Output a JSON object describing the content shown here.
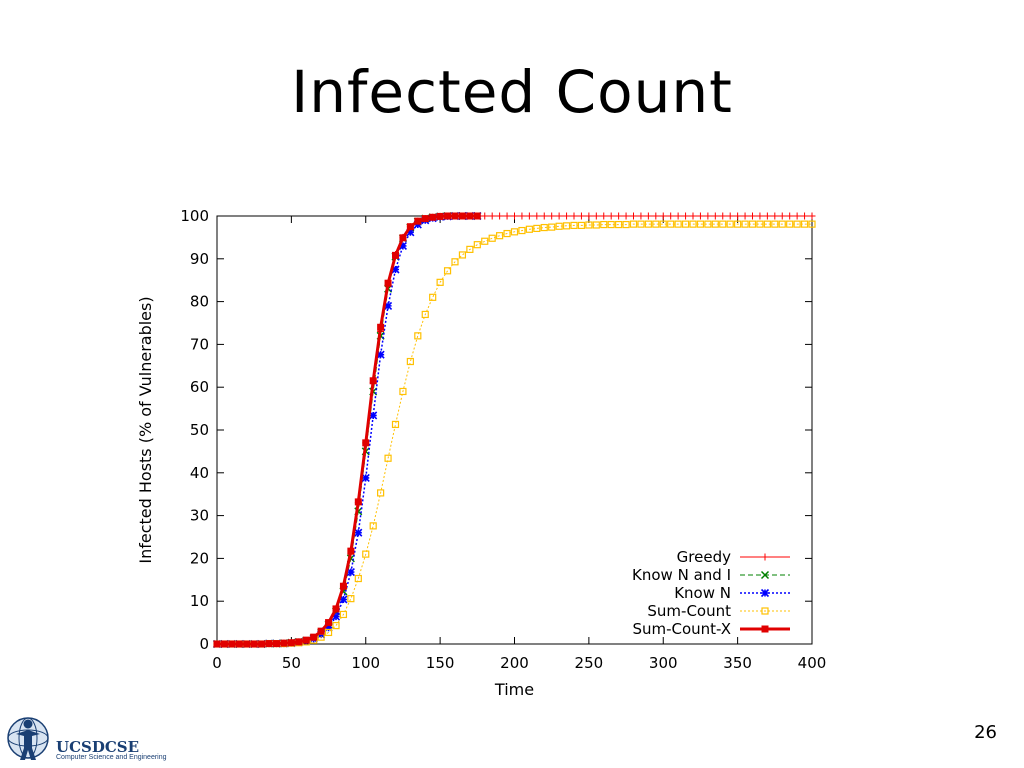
{
  "slide": {
    "title": "Infected Count",
    "page_number": "26"
  },
  "logo": {
    "main_text": "UCSDCSE",
    "sub_text": "Computer Science and Engineering"
  },
  "colors": {
    "greedy": "#ff0000",
    "know_n_and_i": "#008000",
    "know_n": "#0000ff",
    "sum_count": "#ffc000",
    "sum_count_x": "#e00000"
  },
  "chart_data": {
    "type": "line",
    "title": "",
    "xlabel": "Time",
    "ylabel": "Infected Hosts (% of Vulnerables)",
    "xlim": [
      0,
      400
    ],
    "ylim": [
      0,
      100
    ],
    "xticks": [
      0,
      50,
      100,
      150,
      200,
      250,
      300,
      350,
      400
    ],
    "yticks": [
      0,
      10,
      20,
      30,
      40,
      50,
      60,
      70,
      80,
      90,
      100
    ],
    "grid": false,
    "legend_position": "bottom-right",
    "series": [
      {
        "name": "Greedy",
        "color": "#ff0000",
        "marker": "plus",
        "dash": "solid",
        "width": 1,
        "x": [
          0,
          5,
          10,
          15,
          20,
          25,
          30,
          35,
          40,
          45,
          50,
          55,
          60,
          65,
          70,
          75,
          80,
          85,
          90,
          95,
          100,
          105,
          110,
          115,
          120,
          125,
          130,
          135,
          140,
          145,
          150,
          155,
          160,
          165,
          170,
          175,
          180,
          185,
          190,
          195,
          200,
          205,
          210,
          215,
          220,
          225,
          230,
          235,
          240,
          245,
          250,
          255,
          260,
          265,
          270,
          275,
          280,
          285,
          290,
          295,
          300,
          305,
          310,
          315,
          320,
          325,
          330,
          335,
          340,
          345,
          350,
          355,
          360,
          365,
          370,
          375,
          380,
          385,
          390,
          395,
          400
        ],
        "y": [
          0,
          0,
          0,
          0,
          0,
          0,
          0,
          0.1,
          0.1,
          0.2,
          0.3,
          0.5,
          0.8,
          1.5,
          2.8,
          4.8,
          8,
          13,
          21,
          33,
          47,
          61,
          73,
          84,
          91,
          95,
          97.5,
          98.8,
          99.4,
          99.7,
          99.9,
          100,
          100,
          100,
          100,
          100,
          100,
          100,
          100,
          100,
          100,
          100,
          100,
          100,
          100,
          100,
          100,
          100,
          100,
          100,
          100,
          100,
          100,
          100,
          100,
          100,
          100,
          100,
          100,
          100,
          100,
          100,
          100,
          100,
          100,
          100,
          100,
          100,
          100,
          100,
          100,
          100,
          100,
          100,
          100,
          100,
          100,
          100,
          100,
          100,
          100
        ]
      },
      {
        "name": "Know N and I",
        "color": "#008000",
        "marker": "x",
        "dash": "dashed",
        "width": 1,
        "x": [
          0,
          5,
          10,
          15,
          20,
          25,
          30,
          35,
          40,
          45,
          50,
          55,
          60,
          65,
          70,
          75,
          80,
          85,
          90,
          95,
          100,
          105,
          110,
          115,
          120,
          125,
          130,
          135,
          140,
          145,
          150,
          155,
          160,
          165,
          170,
          175
        ],
        "y": [
          0,
          0,
          0,
          0,
          0,
          0,
          0,
          0.1,
          0.1,
          0.2,
          0.3,
          0.5,
          0.8,
          1.4,
          2.6,
          4.5,
          7.6,
          12.3,
          20,
          31,
          45,
          59,
          72,
          83,
          90.5,
          94.8,
          97.3,
          98.7,
          99.4,
          99.7,
          99.9,
          100,
          100,
          100,
          100,
          100
        ]
      },
      {
        "name": "Know N",
        "color": "#0000ff",
        "marker": "star",
        "dash": "dotted",
        "width": 1.5,
        "x": [
          0,
          5,
          10,
          15,
          20,
          25,
          30,
          35,
          40,
          45,
          50,
          55,
          60,
          65,
          70,
          75,
          80,
          85,
          90,
          95,
          100,
          105,
          110,
          115,
          120,
          125,
          130,
          135,
          140,
          145,
          150,
          155,
          160,
          165,
          170,
          175
        ],
        "y": [
          0,
          0,
          0,
          0,
          0,
          0,
          0,
          0.1,
          0.1,
          0.1,
          0.2,
          0.4,
          0.7,
          1.2,
          2.2,
          3.8,
          6.4,
          10.4,
          16.8,
          26,
          38.8,
          53.4,
          67.6,
          79,
          87.5,
          93,
          96.2,
          98,
          99,
          99.5,
          99.8,
          99.9,
          100,
          100,
          100,
          100
        ]
      },
      {
        "name": "Sum-Count",
        "color": "#ffc000",
        "marker": "square",
        "dash": "dotted",
        "width": 1,
        "x": [
          0,
          5,
          10,
          15,
          20,
          25,
          30,
          35,
          40,
          45,
          50,
          55,
          60,
          65,
          70,
          75,
          80,
          85,
          90,
          95,
          100,
          105,
          110,
          115,
          120,
          125,
          130,
          135,
          140,
          145,
          150,
          155,
          160,
          165,
          170,
          175,
          180,
          185,
          190,
          195,
          200,
          205,
          210,
          215,
          220,
          225,
          230,
          235,
          240,
          245,
          250,
          255,
          260,
          265,
          270,
          275,
          280,
          285,
          290,
          295,
          300,
          305,
          310,
          315,
          320,
          325,
          330,
          335,
          340,
          345,
          350,
          355,
          360,
          365,
          370,
          375,
          380,
          385,
          390,
          395,
          400
        ],
        "y": [
          0,
          0,
          0,
          0,
          0,
          0,
          0,
          0.1,
          0.1,
          0.1,
          0.2,
          0.3,
          0.5,
          0.9,
          1.6,
          2.7,
          4.3,
          6.9,
          10.6,
          15.3,
          21,
          27.6,
          35.3,
          43.4,
          51.3,
          59,
          66,
          72,
          77,
          81,
          84.5,
          87.2,
          89.3,
          90.9,
          92.2,
          93.3,
          94.1,
          94.8,
          95.4,
          95.9,
          96.3,
          96.6,
          96.9,
          97.1,
          97.3,
          97.4,
          97.6,
          97.7,
          97.8,
          97.8,
          97.9,
          97.9,
          98,
          98,
          98,
          98,
          98.1,
          98.1,
          98.1,
          98.1,
          98.1,
          98.1,
          98.1,
          98.1,
          98.1,
          98.1,
          98.1,
          98.1,
          98.1,
          98.1,
          98.1,
          98.1,
          98.1,
          98.1,
          98.1,
          98.1,
          98.1,
          98.1,
          98.1,
          98.1,
          98.1
        ]
      },
      {
        "name": "Sum-Count-X",
        "color": "#e00000",
        "marker": "filled-square",
        "dash": "solid",
        "width": 3,
        "x": [
          0,
          5,
          10,
          15,
          20,
          25,
          30,
          35,
          40,
          45,
          50,
          55,
          60,
          65,
          70,
          75,
          80,
          85,
          90,
          95,
          100,
          105,
          110,
          115,
          120,
          125,
          130,
          135,
          140,
          145,
          150,
          155,
          160,
          165,
          170,
          175
        ],
        "y": [
          0,
          0,
          0,
          0,
          0,
          0,
          0,
          0.1,
          0.1,
          0.2,
          0.3,
          0.5,
          0.9,
          1.6,
          3,
          5,
          8.2,
          13.5,
          21.7,
          33.2,
          47,
          61.5,
          74,
          84.3,
          90.8,
          94.9,
          97.5,
          98.8,
          99.4,
          99.7,
          99.9,
          100,
          100,
          100,
          100,
          100
        ]
      }
    ]
  }
}
